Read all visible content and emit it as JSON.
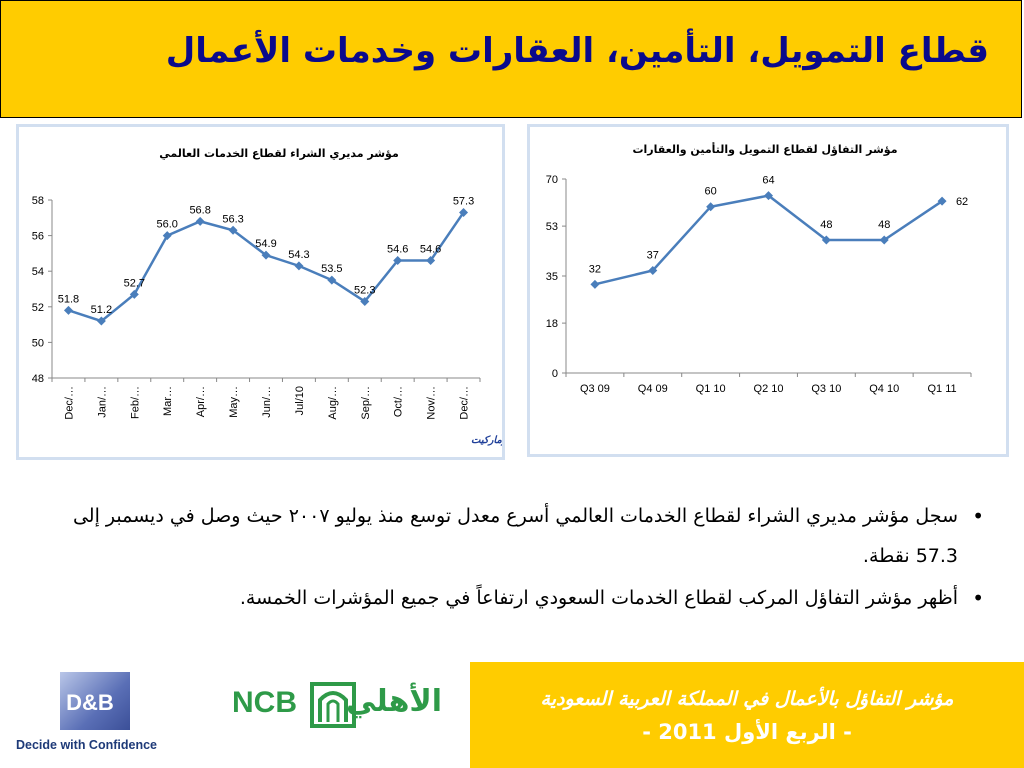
{
  "header": {
    "title": "قطاع التمويل، التأمين، العقارات وخدمات الأعمال"
  },
  "chart_data": [
    {
      "type": "line",
      "title": "مؤشر مديري الشراء لقطاع الخدمات العالمي",
      "categories": [
        "Dec/…",
        "Jan/…",
        "Feb/…",
        "Mar…",
        "Apr/…",
        "May…",
        "Jun/…",
        "Jul/10",
        "Aug/…",
        "Sep/…",
        "Oct/…",
        "Nov/…",
        "Dec/…"
      ],
      "series": [
        {
          "values": [
            51.8,
            51.2,
            52.7,
            56.0,
            56.8,
            56.3,
            54.9,
            54.3,
            53.5,
            52.3,
            54.6,
            54.6,
            57.3
          ]
        }
      ],
      "data_labels": [
        "51.8",
        "51.2",
        "52.7",
        "56.0",
        "56.8",
        "56.3",
        "54.9",
        "54.3",
        "53.5",
        "52.3",
        "54.6",
        "54.6",
        "57.3"
      ],
      "yticks": [
        "48",
        "50",
        "52",
        "54",
        "56",
        "58"
      ],
      "ylim": [
        48,
        58
      ],
      "source": "المصدر: ج . ب. مورجان وماركيت",
      "color": "#4a7ebb",
      "grid": false
    },
    {
      "type": "line",
      "title": "مؤشر التفاؤل لقطاع التمويل والتأمين والعقارات",
      "categories": [
        "Q3 09",
        "Q4 09",
        "Q1 10",
        "Q2 10",
        "Q3 10",
        "Q4 10",
        "Q1 11"
      ],
      "series": [
        {
          "values": [
            32,
            37,
            60,
            64,
            48,
            48,
            62
          ]
        }
      ],
      "data_labels": [
        "32",
        "37",
        "60",
        "64",
        "48",
        "48",
        "62"
      ],
      "yticks": [
        "0",
        "18",
        "35",
        "53",
        "70"
      ],
      "ylim": [
        0,
        70
      ],
      "color": "#4a7ebb",
      "grid": false
    }
  ],
  "bullets": [
    "سجل مؤشر مديري الشراء لقطاع الخدمات العالمي أسرع معدل توسع منذ يوليو ٢٠٠٧ حيث وصل في ديسمبر إلى 57.3 نقطة.",
    "أظهر مؤشر التفاؤل المركب لقطاع الخدمات السعودي ارتفاعاً في جميع المؤشرات الخمسة."
  ],
  "footer": {
    "line1": "مؤشر التفاؤل بالأعمال في المملكة العربية السعودية",
    "line2": "- الربع الأول 2011 -"
  },
  "logos": {
    "dnb": "D&B",
    "dnb_tagline": "Decide with Confidence",
    "ncb_latin": "NCB",
    "ncb_arabic": "الأهلي",
    "ncb_color": "#2e9a48"
  }
}
